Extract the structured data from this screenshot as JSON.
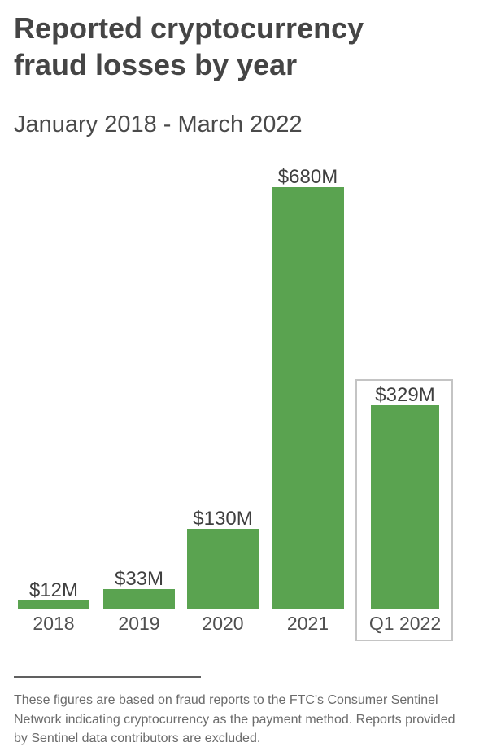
{
  "header": {
    "title_line1": "Reported cryptocurrency",
    "title_line2": "fraud losses by year",
    "subtitle": "January 2018 - March 2022"
  },
  "chart_data": {
    "type": "bar",
    "title": "Reported cryptocurrency fraud losses by year",
    "subtitle": "January 2018 - March 2022",
    "categories": [
      "2018",
      "2019",
      "2020",
      "2021",
      "Q1 2022"
    ],
    "values": [
      12,
      33,
      130,
      680,
      329
    ],
    "value_labels": [
      "$12M",
      "$33M",
      "$130M",
      "$680M",
      "$329M"
    ],
    "ylim": [
      0,
      680
    ],
    "grid": false,
    "legend": false,
    "bar_color": "#5aa350",
    "highlighted_category": "Q1 2022"
  },
  "footer": {
    "note": "These figures are based on fraud reports to the FTC's Consumer Sentinel Network indicating cryptocurrency as the payment method. Reports provided by Sentinel data contributors are excluded."
  },
  "colors": {
    "bar_green": "#5aa350",
    "title_text": "#454545",
    "value_label_text": "#3f3f3f",
    "axis_label_text": "#505050",
    "footnote_text": "#6b6b6b",
    "highlight_border": "#c4c4c4",
    "divider": "#606060"
  }
}
